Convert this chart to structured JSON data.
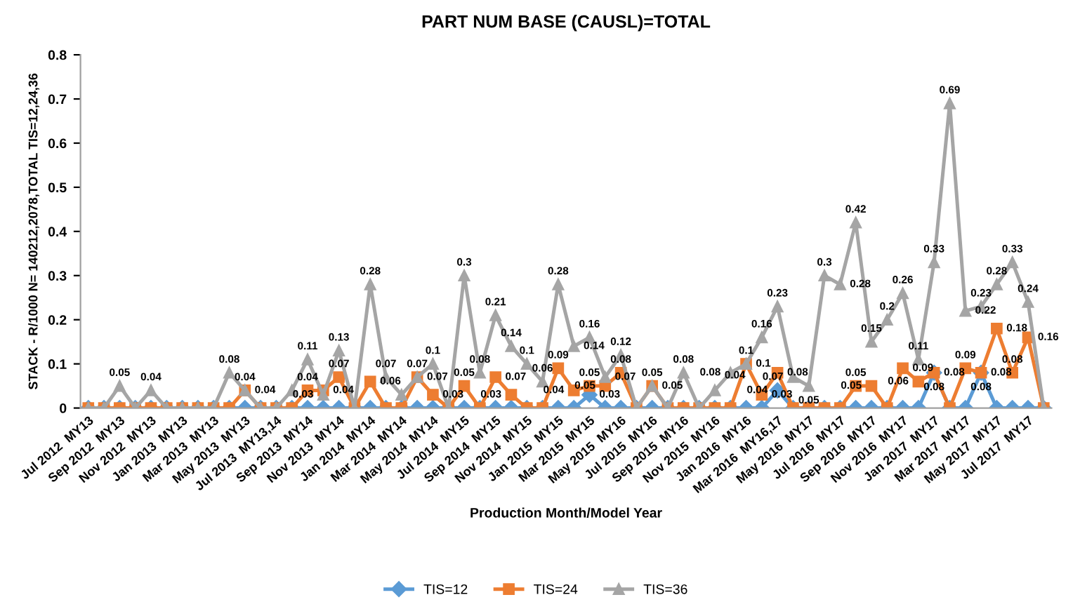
{
  "chart_data": {
    "type": "line",
    "title": "PART NUM BASE (CAUSL)=TOTAL",
    "xlabel": "Production Month/Model Year",
    "ylabel": "STACK - R/1000 N= 140212,2078,TOTAL TIS=12,24,36",
    "categories": [
      "Jul 2012  MY13",
      null,
      "Sep 2012  MY13",
      null,
      "Nov 2012  MY13",
      null,
      "Jan 2013  MY13",
      null,
      "Mar 2013  MY13",
      null,
      "May 2013  MY13",
      null,
      "Jul 2013  MY13,14",
      null,
      "Sep 2013  MY14",
      null,
      "Nov 2013  MY14",
      null,
      "Jan 2014  MY14",
      null,
      "Mar 2014  MY14",
      null,
      "May 2014  MY14",
      null,
      "Jul 2014  MY15",
      null,
      "Sep 2014  MY15",
      null,
      "Nov 2014  MY15",
      null,
      "Jan 2015  MY15",
      null,
      "Mar 2015  MY15",
      null,
      "May 2015  MY16",
      null,
      "Jul 2015  MY16",
      null,
      "Sep 2015  MY16",
      null,
      "Nov 2015  MY16",
      null,
      "Jan 2016  MY16",
      null,
      "Mar 2016  MY16,17",
      null,
      "May 2016  MY17",
      null,
      "Jul 2016  MY17",
      null,
      "Sep 2016  MY17",
      null,
      "Nov 2016  MY17",
      null,
      "Jan 2017  MY17",
      null,
      "Mar 2017  MY17",
      null,
      "May 2017  MY17",
      null,
      "Jul 2017  MY17",
      null
    ],
    "series": [
      {
        "name": "TIS=12",
        "color": "#5b9bd5",
        "marker": "diamond",
        "value_labels": [
          null,
          null,
          null,
          null,
          null,
          null,
          null,
          null,
          null,
          null,
          null,
          null,
          null,
          null,
          null,
          null,
          null,
          null,
          null,
          null,
          null,
          null,
          null,
          null,
          null,
          null,
          null,
          null,
          null,
          null,
          null,
          null,
          "0.03",
          null,
          null,
          null,
          null,
          null,
          null,
          null,
          null,
          null,
          null,
          null,
          "0.04",
          null,
          null,
          null,
          null,
          null,
          null,
          null,
          null,
          null,
          "0.08",
          null,
          null,
          "0.08",
          null,
          null,
          null,
          null
        ],
        "values": [
          0,
          0,
          0,
          0,
          0,
          0,
          0,
          0,
          0,
          0,
          0,
          0,
          0,
          0,
          0,
          0,
          0,
          0,
          0,
          0,
          0,
          0,
          0,
          0,
          0,
          0,
          0,
          0,
          0,
          0,
          0,
          0,
          0.03,
          0,
          0,
          0,
          0,
          0,
          0,
          0,
          0,
          0,
          0,
          0,
          0.04,
          0,
          0,
          0,
          0,
          0,
          0,
          0,
          0,
          0,
          0.08,
          0,
          0,
          0.08,
          0,
          0,
          0,
          0
        ]
      },
      {
        "name": "TIS=24",
        "color": "#ed7d31",
        "marker": "square",
        "value_labels": [
          null,
          null,
          null,
          null,
          null,
          null,
          null,
          null,
          null,
          null,
          "0.04",
          null,
          null,
          null,
          "0.04",
          "0.04",
          "0.07",
          null,
          "0.06",
          null,
          null,
          "0.07",
          "0.03",
          null,
          "0.05",
          null,
          "0.07",
          "0.03",
          null,
          null,
          "0.09",
          "0.04",
          "0.05",
          "0.05",
          "0.08",
          null,
          "0.05",
          null,
          null,
          null,
          null,
          null,
          "0.1",
          "0.03",
          "0.08",
          null,
          null,
          null,
          null,
          "0.05",
          "0.05",
          null,
          "0.09",
          "0.06",
          "0.08",
          null,
          "0.09",
          "0.08",
          "0.18",
          "0.08",
          "0.16",
          null
        ],
        "values": [
          0,
          0,
          0,
          0,
          0,
          0,
          0,
          0,
          0,
          0,
          0.04,
          0,
          0,
          0,
          0.04,
          0.04,
          0.07,
          0,
          0.06,
          0,
          0,
          0.07,
          0.03,
          0,
          0.05,
          0,
          0.07,
          0.03,
          0,
          0,
          0.09,
          0.04,
          0.05,
          0.05,
          0.08,
          0,
          0.05,
          0,
          0,
          0,
          0,
          0,
          0.1,
          0.03,
          0.08,
          0,
          0,
          0,
          0,
          0.05,
          0.05,
          0,
          0.09,
          0.06,
          0.08,
          0,
          0.09,
          0.08,
          0.18,
          0.08,
          0.16,
          0
        ]
      },
      {
        "name": "TIS=36",
        "color": "#a5a5a5",
        "marker": "triangle",
        "value_labels": [
          null,
          null,
          "0.05",
          null,
          "0.04",
          null,
          null,
          null,
          null,
          "0.08",
          "0.04",
          null,
          null,
          null,
          "0.11",
          "0.03",
          "0.13",
          null,
          "0.28",
          "0.07",
          null,
          "0.07",
          "0.1",
          null,
          "0.3",
          "0.08",
          "0.21",
          "0.14",
          "0.1",
          "0.06",
          "0.28",
          "0.14",
          "0.16",
          "0.07",
          "0.12",
          null,
          "0.05",
          null,
          "0.08",
          null,
          "0.04",
          "0.08",
          "0.1",
          "0.16",
          "0.23",
          "0.07",
          "0.05",
          "0.3",
          "0.28",
          "0.42",
          "0.15",
          "0.2",
          "0.26",
          "0.11",
          "0.33",
          "0.69",
          "0.22",
          "0.23",
          "0.28",
          "0.33",
          "0.24",
          null
        ],
        "values": [
          0,
          0,
          0.05,
          0,
          0.04,
          0,
          0,
          0,
          0,
          0.08,
          0.04,
          0,
          0,
          0.04,
          0.11,
          0.03,
          0.13,
          0,
          0.28,
          0.07,
          0.03,
          0.07,
          0.1,
          0,
          0.3,
          0.08,
          0.21,
          0.14,
          0.1,
          0.06,
          0.28,
          0.14,
          0.16,
          0.07,
          0.12,
          0,
          0.05,
          0,
          0.08,
          0,
          0.04,
          0.08,
          0.1,
          0.16,
          0.23,
          0.07,
          0.05,
          0.3,
          0.28,
          0.42,
          0.15,
          0.2,
          0.26,
          0.11,
          0.33,
          0.69,
          0.22,
          0.23,
          0.28,
          0.33,
          0.24,
          0
        ]
      }
    ],
    "ylim": [
      0,
      0.8
    ],
    "yticks": [
      0,
      0.1,
      0.2,
      0.3,
      0.4,
      0.5,
      0.6,
      0.7,
      0.8
    ],
    "legend": "bottom",
    "grid": false
  }
}
